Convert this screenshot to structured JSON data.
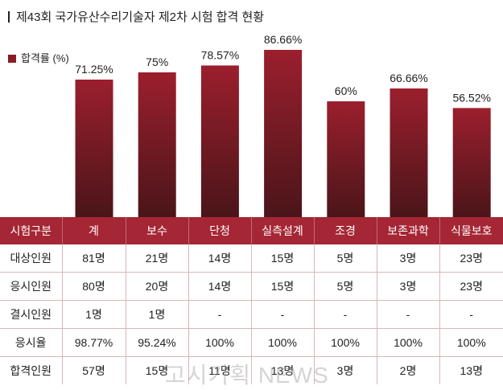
{
  "title": "제43회 국가유산수리기술자 제2차 시험 합격 현황",
  "watermark": "고시기획 NEWS",
  "colors": {
    "bar_top": "#9b1f2d",
    "bar_bottom": "#4a1519",
    "header_bg": "#a52634"
  },
  "chart_data": {
    "type": "bar",
    "categories": [
      "계",
      "보수",
      "단청",
      "실측설계",
      "조경",
      "보존과학",
      "식물보호"
    ],
    "series": [
      {
        "name": "합격률 (%)",
        "values": [
          71.25,
          75,
          78.57,
          86.66,
          60,
          66.66,
          56.52
        ],
        "labels": [
          "71.25%",
          "75%",
          "78.57%",
          "86.66%",
          "60%",
          "66.66%",
          "56.52%"
        ]
      }
    ],
    "ylim": [
      0,
      100
    ],
    "legend": "top-left",
    "grid": false
  },
  "table": {
    "header": [
      "시험구분",
      "계",
      "보수",
      "단청",
      "실측설계",
      "조경",
      "보존과학",
      "식물보호"
    ],
    "rows": [
      {
        "label": "대상인원",
        "cells": [
          "81명",
          "21명",
          "14명",
          "15명",
          "5명",
          "3명",
          "23명"
        ]
      },
      {
        "label": "응시인원",
        "cells": [
          "80명",
          "20명",
          "14명",
          "15명",
          "5명",
          "3명",
          "23명"
        ]
      },
      {
        "label": "결시인원",
        "cells": [
          "1명",
          "1명",
          "-",
          "-",
          "-",
          "-",
          "-"
        ]
      },
      {
        "label": "응시율",
        "cells": [
          "98.77%",
          "95.24%",
          "100%",
          "100%",
          "100%",
          "100%",
          "100%"
        ]
      },
      {
        "label": "합격인원",
        "cells": [
          "57명",
          "15명",
          "11명",
          "13명",
          "3명",
          "2명",
          "13명"
        ]
      }
    ]
  }
}
